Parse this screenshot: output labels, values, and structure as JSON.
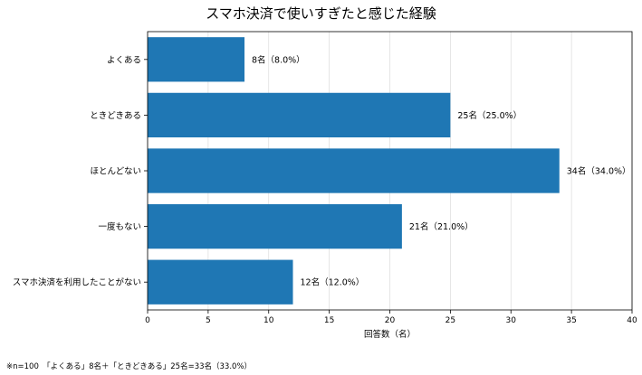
{
  "chart_data": {
    "type": "bar",
    "orientation": "horizontal",
    "title": "スマホ決済で使いすぎたと感じた経験",
    "xlabel": "回答数（名）",
    "ylabel": "",
    "xlim": [
      0,
      40
    ],
    "xticks": [
      0,
      5,
      10,
      15,
      20,
      25,
      30,
      35,
      40
    ],
    "grid": "vertical",
    "categories": [
      "よくある",
      "ときどきある",
      "ほとんどない",
      "一度もない",
      "スマホ決済を利用したことがない"
    ],
    "values": [
      8,
      25,
      34,
      21,
      12
    ],
    "data_labels": [
      "8名（8.0%）",
      "25名（25.0%）",
      "34名（34.0%）",
      "21名（21.0%）",
      "12名（12.0%）"
    ],
    "bar_color": "#1f77b4"
  },
  "footnote": "※n=100　「よくある」8名＋「ときどきある」25名=33名（33.0%）"
}
